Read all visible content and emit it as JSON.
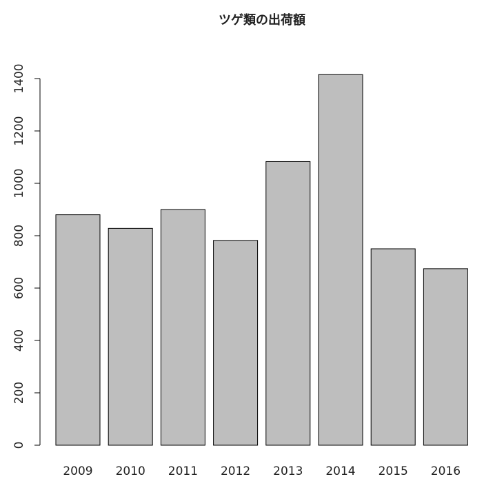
{
  "chart_data": {
    "type": "bar",
    "title": "ツゲ類の出荷額",
    "categories": [
      "2009",
      "2010",
      "2011",
      "2012",
      "2013",
      "2014",
      "2015",
      "2016"
    ],
    "values": [
      880,
      828,
      900,
      782,
      1083,
      1415,
      750,
      674
    ],
    "color": "#bebebe",
    "ylim": [
      0,
      1472
    ],
    "yticks": [
      0,
      200,
      400,
      600,
      800,
      1000,
      1200,
      1400
    ],
    "grid": false
  }
}
